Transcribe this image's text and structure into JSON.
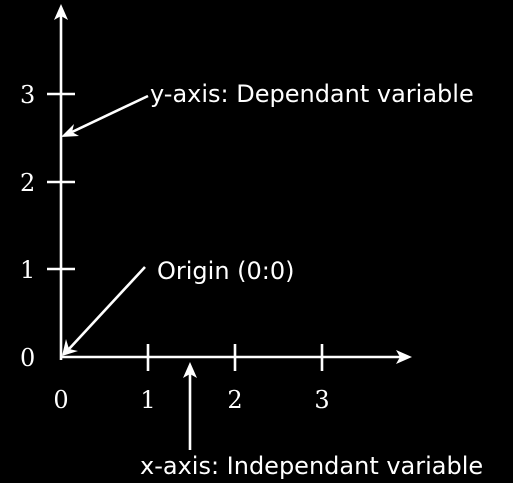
{
  "colors": {
    "background": "#000000",
    "foreground": "#ffffff"
  },
  "axes": {
    "x_ticks": [
      "0",
      "1",
      "2",
      "3"
    ],
    "y_ticks": [
      "0",
      "1",
      "2",
      "3"
    ]
  },
  "annotations": {
    "y_axis_label": "y-axis: Dependant variable",
    "origin_label": "Origin (0:0)",
    "x_axis_label": "x-axis: Independant variable"
  }
}
